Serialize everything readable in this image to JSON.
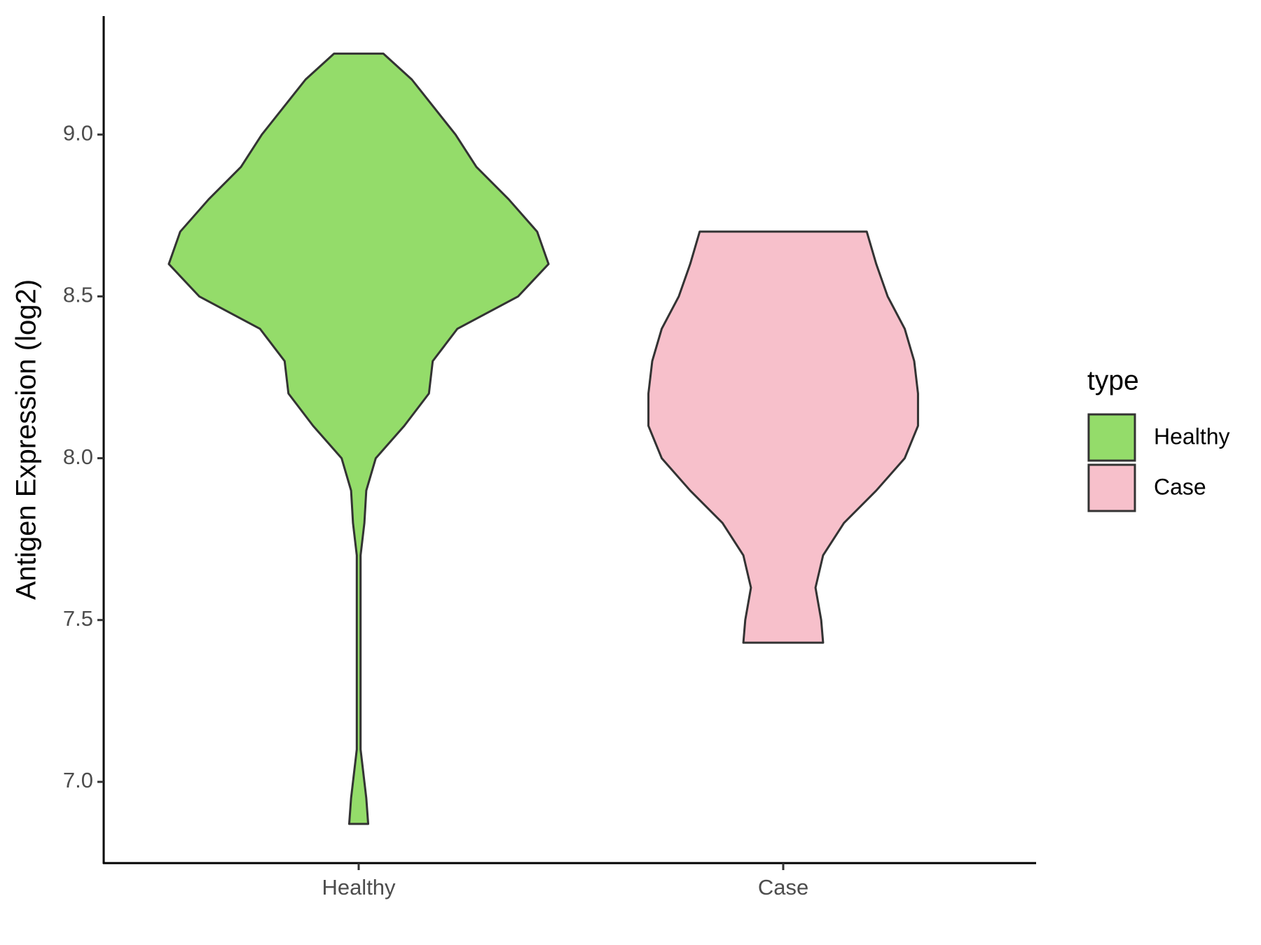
{
  "chart_data": {
    "type": "violin",
    "y_label": "Antigen Expression (log2)",
    "categories": [
      "Healthy",
      "Case"
    ],
    "legend_title": "type",
    "ylim": [
      6.749,
      9.366
    ],
    "yticks": [
      {
        "value": 7,
        "label": "7.0"
      },
      {
        "value": 7.5,
        "label": "7.5"
      },
      {
        "value": 8,
        "label": "8.0"
      },
      {
        "value": 8.5,
        "label": "8.5"
      },
      {
        "value": 9,
        "label": "9.0"
      }
    ],
    "series": [
      {
        "name": "Healthy",
        "color": "#94dc6a",
        "y": [
          6.87,
          6.95,
          7.0,
          7.1,
          7.3,
          7.5,
          7.7,
          7.8,
          7.9,
          8.0,
          8.1,
          8.2,
          8.3,
          8.4,
          8.5,
          8.6,
          8.7,
          8.8,
          8.9,
          9.0,
          9.17,
          9.25
        ],
        "density": [
          0.05,
          0.04,
          0.03,
          0.01,
          0.01,
          0.01,
          0.01,
          0.03,
          0.04,
          0.09,
          0.24,
          0.37,
          0.39,
          0.52,
          0.84,
          1.0,
          0.94,
          0.79,
          0.62,
          0.51,
          0.28,
          0.13
        ]
      },
      {
        "name": "Case",
        "color": "#f7c0cb",
        "y": [
          7.43,
          7.5,
          7.6,
          7.7,
          7.8,
          7.9,
          8.0,
          8.1,
          8.15,
          8.2,
          8.3,
          8.4,
          8.5,
          8.6,
          8.7
        ],
        "density": [
          0.21,
          0.2,
          0.17,
          0.21,
          0.32,
          0.49,
          0.64,
          0.71,
          0.71,
          0.71,
          0.69,
          0.64,
          0.55,
          0.49,
          0.44
        ]
      }
    ]
  }
}
